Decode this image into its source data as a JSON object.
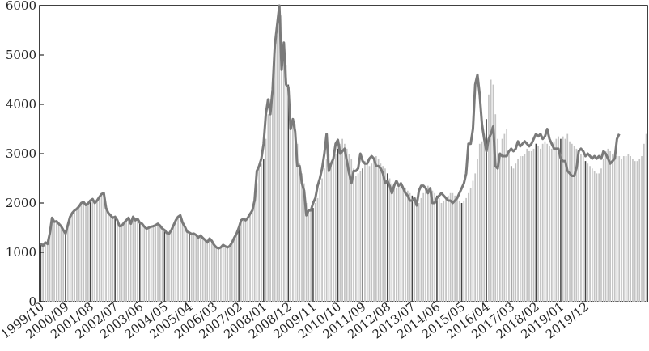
{
  "chart_data": {
    "type": "bar",
    "title": "",
    "xlabel": "",
    "ylabel": "",
    "ylim": [
      0,
      6000
    ],
    "y_ticks": [
      0,
      1000,
      2000,
      3000,
      4000,
      5000,
      6000
    ],
    "x_tick_labels": [
      "1999/10",
      "2000/09",
      "2001/08",
      "2002/07",
      "2003/06",
      "2004/05",
      "2005/04",
      "2006/03",
      "2007/02",
      "2008/01",
      "2008/12",
      "2009/11",
      "2010/10",
      "2011/09",
      "2012/08",
      "2013/07",
      "2014/06",
      "2015/05",
      "2016/04",
      "2017/03",
      "2018/02",
      "2019/01",
      "2019/12"
    ],
    "start_month": "1999-10",
    "end_month": "2019/12",
    "grid": false,
    "legend": "none",
    "colors": {
      "bars": "#c4c4c4",
      "line": "#7a7a7a",
      "axis": "#000000"
    },
    "series": [
      {
        "type": "bar",
        "values": [
          1180,
          1130,
          1200,
          1170,
          1380,
          1700,
          1620,
          1630,
          1580,
          1530,
          1450,
          1380,
          1550,
          1720,
          1800,
          1850,
          1880,
          1930,
          2000,
          2020,
          1960,
          1990,
          2050,
          2080,
          2000,
          2050,
          2120,
          2180,
          2200,
          1900,
          1800,
          1750,
          1700,
          1720,
          1650,
          1530,
          1540,
          1600,
          1650,
          1700,
          1580,
          1720,
          1650,
          1680,
          1600,
          1580,
          1520,
          1480,
          1500,
          1520,
          1530,
          1550,
          1580,
          1540,
          1480,
          1450,
          1390,
          1380,
          1450,
          1550,
          1650,
          1720,
          1750,
          1600,
          1520,
          1420,
          1400,
          1370,
          1380,
          1350,
          1300,
          1340,
          1290,
          1250,
          1200,
          1280,
          1230,
          1150,
          1100,
          1080,
          1100,
          1150,
          1120,
          1100,
          1130,
          1200,
          1300,
          1380,
          1500,
          1650,
          1680,
          1650,
          1700,
          1780,
          1850,
          2000,
          2400,
          2700,
          2800,
          2900,
          3300,
          3800,
          4100,
          4400,
          5000,
          5400,
          5900,
          5800,
          5200,
          4800,
          4400,
          4000,
          3700,
          3600,
          3200,
          2800,
          2600,
          2400,
          2000,
          1800,
          1850,
          1900,
          2000,
          2100,
          2300,
          2500,
          2700,
          2900,
          3000,
          2800,
          2900,
          3000,
          3100,
          3200,
          3300,
          3200,
          3100,
          3000,
          2900,
          2700,
          2550,
          2600,
          2650,
          2700,
          2850,
          2800,
          2750,
          2800,
          2900,
          2950,
          2900,
          2800,
          2750,
          2700,
          2600,
          2500,
          2400,
          2350,
          2300,
          2350,
          2400,
          2350,
          2300,
          2250,
          2200,
          2150,
          2100,
          2050,
          2000,
          2100,
          2200,
          2300,
          2350,
          2300,
          2250,
          2200,
          2150,
          2100,
          2000,
          2050,
          2100,
          2150,
          2200,
          2200,
          2150,
          2100,
          2050,
          2000,
          2050,
          2100,
          2200,
          2300,
          2450,
          2600,
          2900,
          3200,
          3250,
          3400,
          3700,
          4200,
          4500,
          4400,
          3800,
          3300,
          3000,
          3300,
          3400,
          3500,
          3000,
          2750,
          2700,
          2800,
          2900,
          2950,
          2950,
          3000,
          3100,
          3050,
          3050,
          3100,
          3200,
          3150,
          3100,
          3200,
          3250,
          3200,
          3150,
          3100,
          3250,
          3300,
          3350,
          3300,
          3350,
          3300,
          3400,
          3250,
          3200,
          3150,
          3100,
          3050,
          3000,
          2950,
          2850,
          2800,
          2750,
          2700,
          2650,
          2600,
          2600,
          2700,
          2900,
          3050,
          3100,
          3050,
          3000,
          2950,
          2950,
          2950,
          2900,
          2950,
          2950,
          3000,
          2950,
          2900,
          2850,
          2850,
          2900,
          2950,
          3200,
          3400
        ]
      },
      {
        "type": "line",
        "values": [
          1180,
          1130,
          1200,
          1170,
          1380,
          1700,
          1620,
          1630,
          1580,
          1530,
          1450,
          1380,
          1550,
          1720,
          1800,
          1850,
          1880,
          1930,
          2000,
          2020,
          1960,
          1990,
          2050,
          2080,
          2000,
          2050,
          2120,
          2180,
          2200,
          1900,
          1800,
          1750,
          1700,
          1720,
          1650,
          1530,
          1540,
          1600,
          1650,
          1700,
          1580,
          1720,
          1650,
          1680,
          1600,
          1580,
          1520,
          1480,
          1500,
          1520,
          1530,
          1550,
          1580,
          1540,
          1480,
          1450,
          1390,
          1380,
          1450,
          1550,
          1650,
          1720,
          1750,
          1600,
          1520,
          1420,
          1400,
          1370,
          1380,
          1350,
          1300,
          1340,
          1290,
          1250,
          1200,
          1280,
          1230,
          1150,
          1100,
          1080,
          1100,
          1150,
          1120,
          1100,
          1130,
          1200,
          1300,
          1380,
          1500,
          1650,
          1680,
          1650,
          1700,
          1780,
          1850,
          2050,
          2650,
          2750,
          2900,
          3200,
          3800,
          4100,
          3800,
          4300,
          5200,
          5600,
          6000,
          4700,
          5250,
          4400,
          4350,
          3500,
          3700,
          3450,
          2750,
          2750,
          2400,
          2250,
          1750,
          1850,
          1850,
          2000,
          2100,
          2350,
          2500,
          2700,
          3000,
          3400,
          2650,
          2800,
          2900,
          3200,
          3280,
          3000,
          3050,
          3100,
          2850,
          2600,
          2400,
          2650,
          2650,
          2700,
          3000,
          2850,
          2800,
          2800,
          2900,
          2950,
          2900,
          2750,
          2750,
          2700,
          2600,
          2400,
          2450,
          2350,
          2200,
          2350,
          2450,
          2350,
          2400,
          2300,
          2200,
          2150,
          2050,
          2050,
          2100,
          1950,
          2250,
          2350,
          2350,
          2300,
          2200,
          2300,
          2000,
          2000,
          2100,
          2150,
          2200,
          2150,
          2100,
          2050,
          2050,
          2000,
          2050,
          2100,
          2200,
          2300,
          2400,
          2600,
          3200,
          3200,
          3500,
          4400,
          4600,
          4200,
          3600,
          3300,
          3050,
          3300,
          3400,
          3550,
          2750,
          2700,
          3000,
          2950,
          2950,
          2950,
          3050,
          3100,
          3050,
          3100,
          3250,
          3150,
          3200,
          3250,
          3200,
          3150,
          3200,
          3300,
          3400,
          3350,
          3400,
          3300,
          3350,
          3500,
          3300,
          3200,
          3100,
          3100,
          3100,
          2900,
          2850,
          2850,
          2650,
          2600,
          2550,
          2550,
          2700,
          3050,
          3100,
          3050,
          2950,
          3000,
          2950,
          2900,
          2950,
          2900,
          2950,
          2900,
          3050,
          3000,
          2900,
          2800,
          2850,
          2900,
          3300,
          3400
        ]
      }
    ]
  }
}
